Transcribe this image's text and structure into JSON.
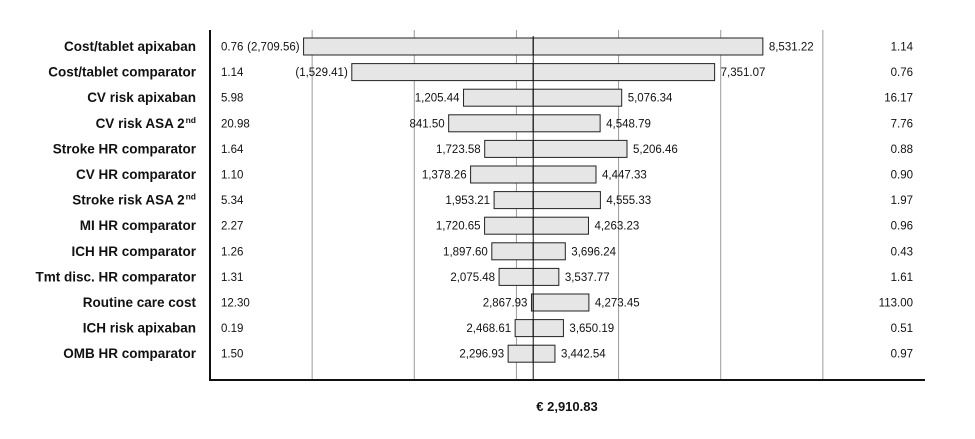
{
  "chart_data": {
    "type": "bar",
    "subtype": "tornado",
    "base_value": 2910.83,
    "base_label": "€ 2,910.83",
    "x_axis": {
      "min": -5000,
      "max": 12500,
      "gridlines": [
        -2500,
        0,
        2500,
        5000,
        7500,
        10000
      ]
    },
    "rows": [
      {
        "label": "Cost/tablet apixaban",
        "sup": "",
        "low_param": "0.76",
        "high_param": "1.14",
        "low_value": -2709.56,
        "high_value": 8531.22,
        "low_text": "(2,709.56)",
        "high_text": "8,531.22"
      },
      {
        "label": "Cost/tablet comparator",
        "sup": "",
        "low_param": "1.14",
        "high_param": "0.76",
        "low_value": -1529.41,
        "high_value": 7351.07,
        "low_text": "(1,529.41)",
        "high_text": "7,351.07"
      },
      {
        "label": "CV risk apixaban",
        "sup": "",
        "low_param": "5.98",
        "high_param": "16.17",
        "low_value": 1205.44,
        "high_value": 5076.34,
        "low_text": "1,205.44",
        "high_text": "5,076.34"
      },
      {
        "label": "CV risk ASA 2",
        "sup": "nd",
        "low_param": "20.98",
        "high_param": "7.76",
        "low_value": 841.5,
        "high_value": 4548.79,
        "low_text": "841.50",
        "high_text": "4,548.79"
      },
      {
        "label": "Stroke HR comparator",
        "sup": "",
        "low_param": "1.64",
        "high_param": "0.88",
        "low_value": 1723.58,
        "high_value": 5206.46,
        "low_text": "1,723.58",
        "high_text": "5,206.46"
      },
      {
        "label": "CV HR comparator",
        "sup": "",
        "low_param": "1.10",
        "high_param": "0.90",
        "low_value": 1378.26,
        "high_value": 4447.33,
        "low_text": "1,378.26",
        "high_text": "4,447.33"
      },
      {
        "label": "Stroke risk ASA 2",
        "sup": "nd",
        "low_param": "5.34",
        "high_param": "1.97",
        "low_value": 1953.21,
        "high_value": 4555.33,
        "low_text": "1,953.21",
        "high_text": "4,555.33"
      },
      {
        "label": "MI HR comparator",
        "sup": "",
        "low_param": "2.27",
        "high_param": "0.96",
        "low_value": 1720.65,
        "high_value": 4263.23,
        "low_text": "1,720.65",
        "high_text": "4,263.23"
      },
      {
        "label": "ICH HR comparator",
        "sup": "",
        "low_param": "1.26",
        "high_param": "0.43",
        "low_value": 1897.6,
        "high_value": 3696.24,
        "low_text": "1,897.60",
        "high_text": "3,696.24"
      },
      {
        "label": "Tmt disc. HR comparator",
        "sup": "",
        "low_param": "1.31",
        "high_param": "1.61",
        "low_value": 2075.48,
        "high_value": 3537.77,
        "low_text": "2,075.48",
        "high_text": "3,537.77"
      },
      {
        "label": "Routine care cost",
        "sup": "",
        "low_param": "12.30",
        "high_param": "113.00",
        "low_value": 2867.93,
        "high_value": 4273.45,
        "low_text": "2,867.93",
        "high_text": "4,273.45"
      },
      {
        "label": "ICH risk apixaban",
        "sup": "",
        "low_param": "0.19",
        "high_param": "0.51",
        "low_value": 2468.61,
        "high_value": 3650.19,
        "low_text": "2,468.61",
        "high_text": "3,650.19"
      },
      {
        "label": "OMB HR comparator",
        "sup": "",
        "low_param": "1.50",
        "high_param": "0.97",
        "low_value": 2296.93,
        "high_value": 3442.54,
        "low_text": "2,296.93",
        "high_text": "3,442.54"
      }
    ],
    "colors": {
      "bar_fill": "#e6e6e6",
      "bar_stroke": "#222222",
      "grid": "#9a9a9a",
      "axis": "#111111"
    }
  }
}
